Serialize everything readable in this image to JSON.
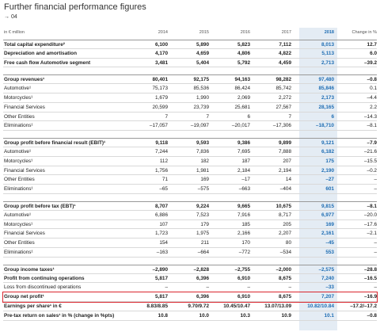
{
  "header": {
    "title": "Further financial performance figures",
    "subtitle": "→ 04"
  },
  "table": {
    "columns": [
      "in € million",
      "2014",
      "2015",
      "2016",
      "2017",
      "2018",
      "Change in %"
    ],
    "sections": [
      {
        "rows": [
          [
            "Total capital expenditure²",
            "6,100",
            "5,890",
            "5,823",
            "7,112",
            "8,013",
            "12.7"
          ],
          [
            "Depreciation and amortisation",
            "4,170",
            "4,659",
            "4,806",
            "4,822",
            "5,113",
            "6.0"
          ],
          [
            "Free cash flow Automotive segment",
            "3,481",
            "5,404",
            "5,792",
            "4,459",
            "2,713",
            "–39.2"
          ]
        ]
      },
      {
        "rows": [
          [
            "Group revenues¹",
            "80,401",
            "92,175",
            "94,163",
            "98,282",
            "97,480",
            "–0.8"
          ],
          [
            "Automotive¹",
            "75,173",
            "85,536",
            "86,424",
            "85,742",
            "85,846",
            "0.1"
          ],
          [
            "Motorcycles¹",
            "1,679",
            "1,990",
            "2,069",
            "2,272",
            "2,173",
            "–4.4"
          ],
          [
            "Financial Services",
            "20,599",
            "23,739",
            "25,681",
            "27,567",
            "28,165",
            "2.2"
          ],
          [
            "Other Entities",
            "7",
            "7",
            "6",
            "7",
            "6",
            "–14.3"
          ],
          [
            "Eliminations¹",
            "–17,057",
            "–19,097",
            "–20,017",
            "–17,306",
            "–18,710",
            "–8.1"
          ]
        ]
      },
      {
        "rows": [
          [
            "Group profit before financial result (EBIT)¹",
            "9,118",
            "9,593",
            "9,386",
            "9,899",
            "9,121",
            "–7.9"
          ],
          [
            "Automotive¹",
            "7,244",
            "7,836",
            "7,695",
            "7,888",
            "6,182",
            "–21.6"
          ],
          [
            "Motorcycles¹",
            "112",
            "182",
            "187",
            "207",
            "175",
            "–15.5"
          ],
          [
            "Financial Services",
            "1,756",
            "1,981",
            "2,184",
            "2,194",
            "2,190",
            "–0.2"
          ],
          [
            "Other Entities",
            "71",
            "169",
            "–17",
            "14",
            "–27",
            "–"
          ],
          [
            "Eliminations¹",
            "–65",
            "–575",
            "–663",
            "–404",
            "601",
            "–"
          ]
        ]
      },
      {
        "rows": [
          [
            "Group profit before tax (EBT)¹",
            "8,707",
            "9,224",
            "9,665",
            "10,675",
            "9,815",
            "–8.1"
          ],
          [
            "Automotive¹",
            "6,886",
            "7,523",
            "7,916",
            "8,717",
            "6,977",
            "–20.0"
          ],
          [
            "Motorcycles¹",
            "107",
            "179",
            "185",
            "205",
            "169",
            "–17.6"
          ],
          [
            "Financial Services",
            "1,723",
            "1,975",
            "2,166",
            "2,207",
            "2,161",
            "–2.1"
          ],
          [
            "Other Entities",
            "154",
            "211",
            "170",
            "80",
            "–45",
            "–"
          ],
          [
            "Eliminations¹",
            "–163",
            "–664",
            "–772",
            "–534",
            "553",
            "–"
          ]
        ]
      },
      {
        "rows": [
          [
            "Group income taxes¹",
            "–2,890",
            "–2,828",
            "–2,755",
            "–2,000",
            "–2,575",
            "–28.8"
          ],
          [
            "Profit from continuing operations",
            "5,817",
            "6,396",
            "6,910",
            "8,675",
            "7,240",
            "–16.5"
          ],
          [
            "Loss from discontinued operations",
            "–",
            "–",
            "–",
            "–",
            "–33",
            "–"
          ],
          [
            "Group net profit¹",
            "5,817",
            "6,396",
            "6,910",
            "8,675",
            "7,207",
            "–16.9"
          ],
          [
            "Earnings per share¹ in €",
            "8.83/8.85",
            "9.70/9.72",
            "10.45/10.47",
            "13.07/13.09",
            "10.82/10.84",
            "–17.2/–17.2"
          ],
          [
            "Pre-tax return on sales¹ in % (change in %pts)",
            "10.8",
            "10.0",
            "10.3",
            "10.9",
            "10.1",
            "–0.8"
          ]
        ]
      }
    ]
  }
}
